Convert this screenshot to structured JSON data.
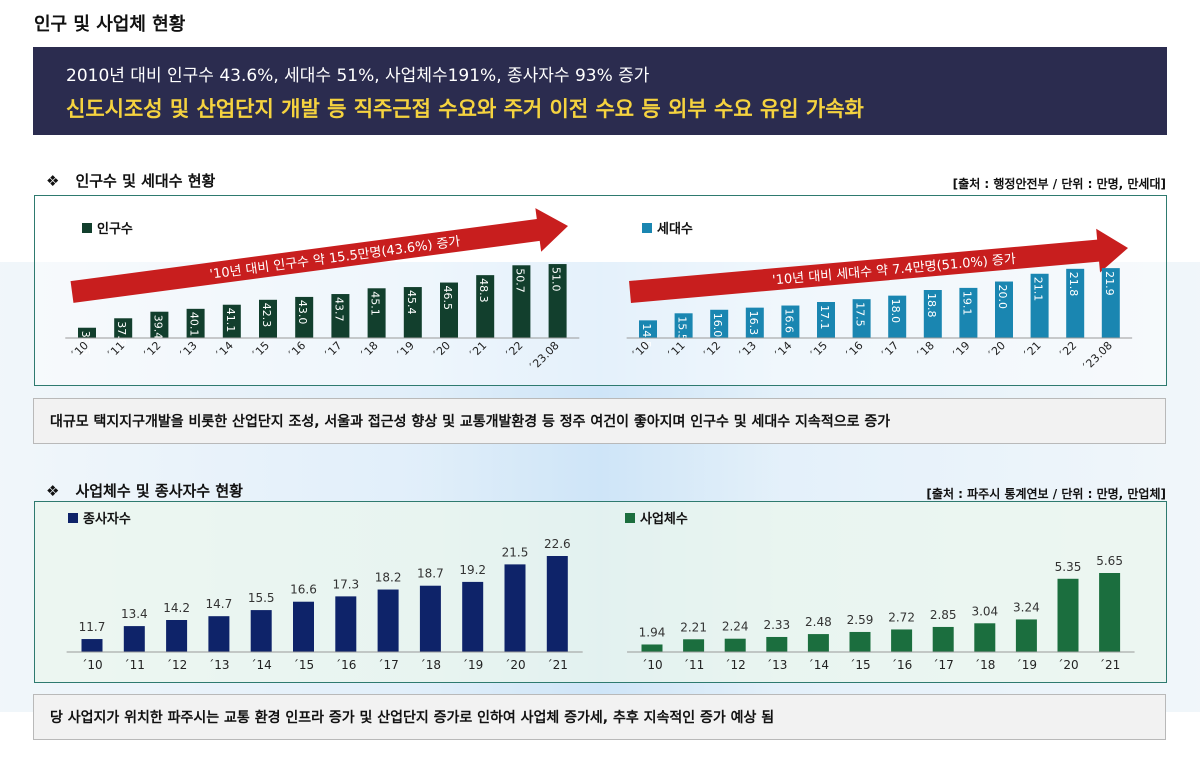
{
  "page": {
    "title": "인구 및 사업체 현황"
  },
  "banner": {
    "line1": "2010년 대비 인구수 43.6%, 세대수 51%, 사업체수191%,  종사자수 93% 증가",
    "line2": "신도시조성 및 산업단지 개발 등 직주근접 수요와 주거 이전 수요 등 외부 수요 유입 가속화"
  },
  "section1": {
    "diamond": "❖",
    "title": "인구수 및 세대수 현황",
    "source": "[출처 : 행정안전부 / 단위 : 만명, 만세대]",
    "note": "대규모 택지지구개발을 비롯한 산업단지 조성, 서울과 접근성 향상 및 교통개발환경 등 정주 여건이 좋아지며 인구수 및 세대수 지속적으로 증가"
  },
  "section2": {
    "diamond": "❖",
    "title": "사업체수 및 종사자수 현황",
    "source": "[출처 : 파주시 통계연보 / 단위 : 만명, 만업체]",
    "note": "당 사업지가 위치한 파주시는 교통 환경 인프라 증가 및 산업단지 증가로 인하여 사업체 증가세, 추후 지속적인 증가 예상 됨"
  },
  "colors": {
    "population": "#123f2d",
    "households": "#1a86b1",
    "workers": "#0e2369",
    "businesses": "#1b6e3e",
    "arrow": "#c81e1e",
    "banner": "#2b2c4f"
  },
  "chart_data": [
    {
      "type": "bar",
      "name": "population",
      "legend": "인구수",
      "categories": [
        "´10",
        "´11",
        "´12",
        "´13",
        "´14",
        "´15",
        "´16",
        "´17",
        "´18",
        "´19",
        "´20",
        "´21",
        "´22",
        "´23.08"
      ],
      "values": [
        35.5,
        37.8,
        39.4,
        40.1,
        41.1,
        42.3,
        43.0,
        43.7,
        45.1,
        45.4,
        46.5,
        48.3,
        50.7,
        51.0
      ],
      "labels": [
        "35.5",
        "37.8",
        "39.4",
        "40.1",
        "41.1",
        "42.3",
        "43.0",
        "43.7",
        "45.1",
        "45.4",
        "46.5",
        "48.3",
        "50.7",
        "51.0"
      ],
      "annotation": "'10년 대비 인구수 약 15.5만명(43.6%) 증가",
      "ylim": [
        33,
        51.5
      ]
    },
    {
      "type": "bar",
      "name": "households",
      "legend": "세대수",
      "categories": [
        "´10",
        "´11",
        "´12",
        "´13",
        "´14",
        "´15",
        "´16",
        "´17",
        "´18",
        "´19",
        "´20",
        "´21",
        "´22",
        "´23.08"
      ],
      "values": [
        14.5,
        15.5,
        16.0,
        16.3,
        16.6,
        17.1,
        17.5,
        18.0,
        18.8,
        19.1,
        20.0,
        21.1,
        21.8,
        21.9
      ],
      "labels": [
        "14.5",
        "15.5",
        "16.0",
        "16.3",
        "16.6",
        "17.1",
        "17.5",
        "18.0",
        "18.8",
        "19.1",
        "20.0",
        "21.1",
        "21.8",
        "21.9"
      ],
      "annotation": "'10년 대비 세대수 약 7.4만명(51.0%) 증가",
      "ylim": [
        12,
        22.2
      ]
    },
    {
      "type": "bar",
      "name": "workers",
      "legend": "종사자수",
      "categories": [
        "´10",
        "´11",
        "´12",
        "´13",
        "´14",
        "´15",
        "´16",
        "´17",
        "´18",
        "´19",
        "´20",
        "´21"
      ],
      "values": [
        11.7,
        13.4,
        14.2,
        14.7,
        15.5,
        16.6,
        17.3,
        18.2,
        18.7,
        19.2,
        21.5,
        22.6
      ],
      "labels": [
        "11.7",
        "13.4",
        "14.2",
        "14.7",
        "15.5",
        "16.6",
        "17.3",
        "18.2",
        "18.7",
        "19.2",
        "21.5",
        "22.6"
      ],
      "ylim": [
        10,
        22.6
      ]
    },
    {
      "type": "bar",
      "name": "businesses",
      "legend": "사업체수",
      "categories": [
        "´10",
        "´11",
        "´12",
        "´13",
        "´14",
        "´15",
        "´16",
        "´17",
        "´18",
        "´19",
        "´20",
        "´21"
      ],
      "values": [
        1.94,
        2.21,
        2.24,
        2.33,
        2.48,
        2.59,
        2.72,
        2.85,
        3.04,
        3.24,
        5.35,
        5.65
      ],
      "labels": [
        "1.94",
        "2.21",
        "2.24",
        "2.33",
        "2.48",
        "2.59",
        "2.72",
        "2.85",
        "3.04",
        "3.24",
        "5.35",
        "5.65"
      ],
      "ylim": [
        1.55,
        5.65
      ]
    }
  ]
}
